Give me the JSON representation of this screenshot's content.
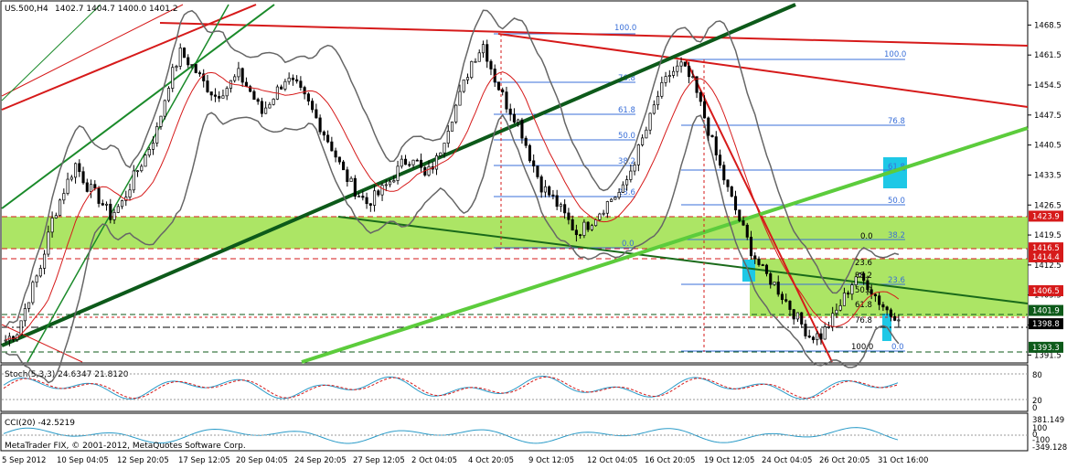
{
  "header": {
    "symbol_info": "US.500,H4",
    "ohlc": "1402.7 1404.7 1400.0 1401.2"
  },
  "copyright": "MetaTrader FIX, © 2001-2012, MetaQuotes Software Corp.",
  "indicators": {
    "stoch": {
      "label": "Stoch(5,3,3) 24.6347 21.8120",
      "levels": [
        "80",
        "20",
        "0"
      ]
    },
    "cci": {
      "label": "CCI(20) -42.5219",
      "levels": [
        "381.149",
        "100",
        "0",
        "-100",
        "-349.128"
      ]
    }
  },
  "price_tags": [
    {
      "text": "1423.9",
      "color": "#d61a1a"
    },
    {
      "text": "1416.5",
      "color": "#d61a1a"
    },
    {
      "text": "1414.4",
      "color": "#d61a1a"
    },
    {
      "text": "1406.5",
      "color": "#d61a1a"
    },
    {
      "text": "1401.9",
      "color": "#0d5a1a"
    },
    {
      "text": "1398.8",
      "color": "#000000"
    },
    {
      "text": "1393.3",
      "color": "#0d5a1a"
    }
  ],
  "fib_labels_left": [
    "100.0",
    "76.8",
    "61.8",
    "50.0",
    "38.2",
    "23.6",
    "0.0"
  ],
  "fib_labels_right": [
    "100.0",
    "76.8",
    "61.8",
    "50.0",
    "38.2",
    "23.6",
    "0.0"
  ],
  "fib_labels_small": [
    "0.0",
    "23.6",
    "38.2",
    "50.0",
    "61.8",
    "76.8",
    "100.0"
  ],
  "chart_data": {
    "type": "candlestick",
    "symbol": "US.500",
    "timeframe": "H4",
    "y_axis_labels": [
      "1468.5",
      "1461.5",
      "1454.5",
      "1447.5",
      "1440.5",
      "1433.5",
      "1426.5",
      "1419.5",
      "1412.5",
      "1405.5",
      "1398.5",
      "1391.5"
    ],
    "ylim": [
      1390.5,
      1470.5
    ],
    "x_axis_labels": [
      "5 Sep 2012",
      "10 Sep 04:05",
      "12 Sep 20:05",
      "17 Sep 12:05",
      "20 Sep 04:05",
      "24 Sep 20:05",
      "27 Sep 12:05",
      "2 Oct 04:05",
      "4 Oct 20:05",
      "9 Oct 12:05",
      "12 Oct 04:05",
      "16 Oct 20:05",
      "19 Oct 12:05",
      "24 Oct 04:05",
      "26 Oct 20:05",
      "31 Oct 16:00"
    ],
    "last_close": 1401.2,
    "close_path": [
      1395,
      1397,
      1405,
      1412,
      1423,
      1430,
      1436,
      1431,
      1428,
      1424,
      1427,
      1433,
      1438,
      1444,
      1455,
      1462,
      1459,
      1455,
      1452,
      1454,
      1457,
      1453,
      1448,
      1452,
      1456,
      1454,
      1450,
      1445,
      1440,
      1434,
      1430,
      1427,
      1429,
      1432,
      1436,
      1438,
      1433,
      1437,
      1445,
      1452,
      1460,
      1464,
      1456,
      1450,
      1446,
      1438,
      1431,
      1428,
      1424,
      1420,
      1422,
      1425,
      1428,
      1430,
      1437,
      1444,
      1452,
      1457,
      1459,
      1455,
      1447,
      1438,
      1430,
      1423,
      1416,
      1411,
      1408,
      1404,
      1400,
      1396,
      1396,
      1400,
      1405,
      1410,
      1408,
      1404,
      1401
    ]
  }
}
